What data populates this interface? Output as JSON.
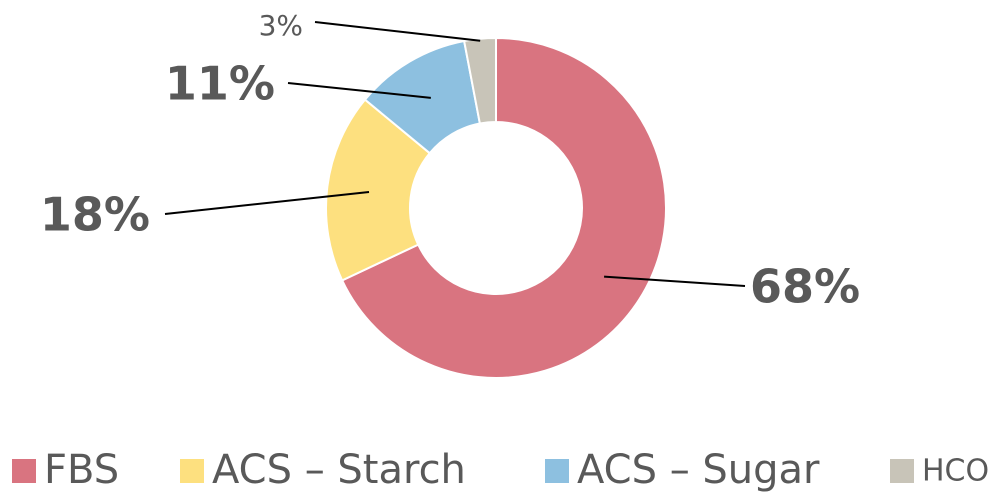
{
  "chart_data": {
    "type": "donut",
    "categories": [
      "FBS",
      "ACS – Starch",
      "ACS – Sugar",
      "HCO"
    ],
    "values": [
      68,
      18,
      11,
      3
    ],
    "value_labels": [
      "68%",
      "18%",
      "11%",
      "3%"
    ],
    "colors": [
      "#d97480",
      "#fde07f",
      "#8dc0e0",
      "#c8c4b8"
    ],
    "legend": "bottom"
  }
}
